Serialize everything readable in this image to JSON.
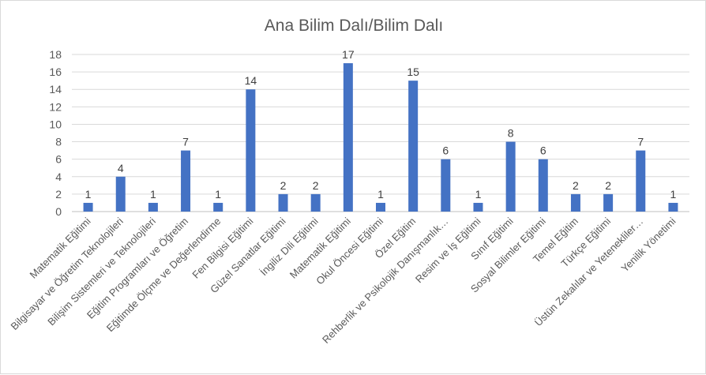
{
  "chart_data": {
    "type": "bar",
    "title": "Ana Bilim Dalı/Bilim Dalı",
    "xlabel": "",
    "ylabel": "",
    "ylim": [
      0,
      18
    ],
    "yticks": [
      0,
      2,
      4,
      6,
      8,
      10,
      12,
      14,
      16,
      18
    ],
    "grid": true,
    "legend": "none",
    "bar_color": "#4472c4",
    "categories": [
      "Matematik Eğitimi",
      "Bilgisayar ve Öğretim Teknolojileri",
      "Bilişim Sistemleri ve Teknolojileri",
      "Eğitim Programları ve Öğretim",
      "Eğitimde Ölçme ve Değerlendirme",
      "Fen Bilgisi Eğitimi",
      "Güzel Sanatlar Eğitimi",
      "İngiliz Dili Eğitimi",
      "Matematik Eğitimi",
      "Okul Öncesi Eğitimi",
      "Özel Eğitim",
      "Rehberlik ve Psikolojik Danışmanlık…",
      "Resim ve İş Eğitimi",
      "Sınıf Eğitimi",
      "Sosyal Bilimler Eğitimi",
      "Temel Eğitim",
      "Türkçe Eğitimi",
      "Üstün Zekalılar ve Yetenekliler…",
      "Yenilik Yönetimi"
    ],
    "values": [
      1,
      4,
      1,
      7,
      1,
      14,
      2,
      2,
      17,
      1,
      15,
      6,
      1,
      8,
      6,
      2,
      2,
      7,
      1
    ]
  }
}
